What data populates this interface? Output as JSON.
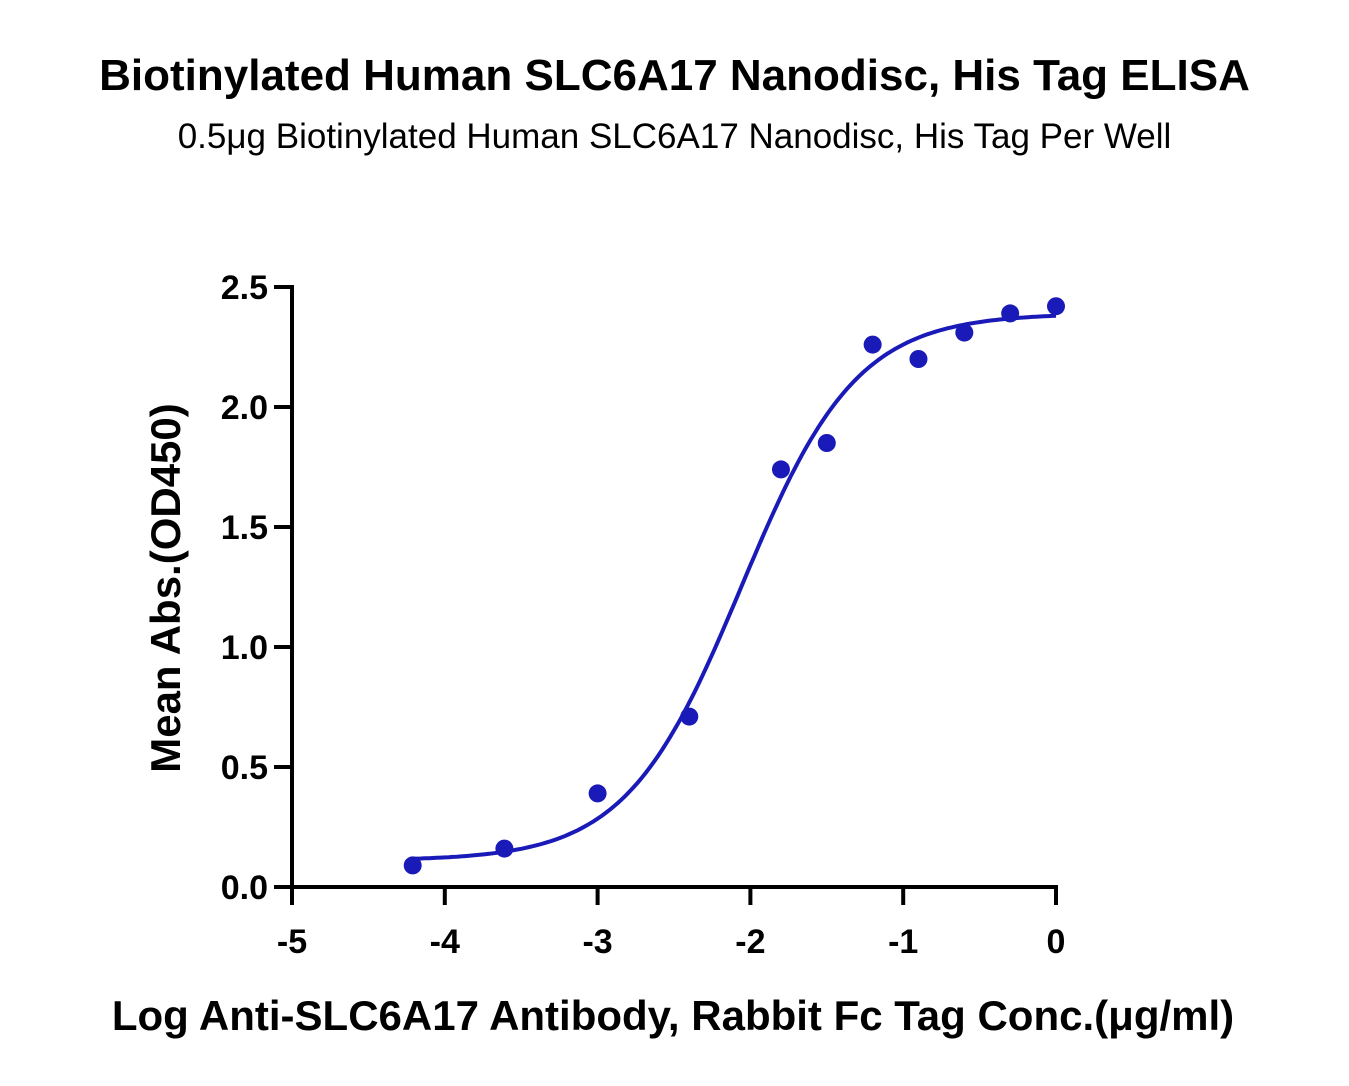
{
  "chart_data": {
    "type": "scatter",
    "title": "Biotinylated Human SLC6A17 Nanodisc, His Tag ELISA",
    "subtitle": "0.5μg Biotinylated Human SLC6A17 Nanodisc, His Tag Per Well",
    "xlabel": "Log Anti-SLC6A17 Antibody, Rabbit Fc Tag Conc.(μg/ml)",
    "ylabel": "Mean Abs.(OD450)",
    "xlim": [
      -5,
      0
    ],
    "ylim": [
      0,
      2.5
    ],
    "x_ticks": [
      "-5",
      "-4",
      "-3",
      "-2",
      "-1",
      "0"
    ],
    "y_ticks": [
      "0.0",
      "0.5",
      "1.0",
      "1.5",
      "2.0",
      "2.5"
    ],
    "x_tick_values": [
      -5,
      -4,
      -3,
      -2,
      -1,
      0
    ],
    "y_tick_values": [
      0,
      0.5,
      1.0,
      1.5,
      2.0,
      2.5
    ],
    "grid": false,
    "series": [
      {
        "color": "#1a1ab8",
        "points": [
          {
            "x": -4.21,
            "y": 0.09
          },
          {
            "x": -3.61,
            "y": 0.16
          },
          {
            "x": -3.0,
            "y": 0.39
          },
          {
            "x": -2.4,
            "y": 0.71
          },
          {
            "x": -1.8,
            "y": 1.74
          },
          {
            "x": -1.5,
            "y": 1.85
          },
          {
            "x": -1.2,
            "y": 2.26
          },
          {
            "x": -0.9,
            "y": 2.2
          },
          {
            "x": -0.6,
            "y": 2.31
          },
          {
            "x": -0.3,
            "y": 2.39
          },
          {
            "x": 0.0,
            "y": 2.42
          }
        ],
        "fit": {
          "type": "4PL",
          "bottom": 0.11,
          "top": 2.39,
          "log_ec50": -2.06,
          "hill_slope": 1.15,
          "x_range": [
            -4.21,
            0.0
          ]
        }
      }
    ]
  }
}
